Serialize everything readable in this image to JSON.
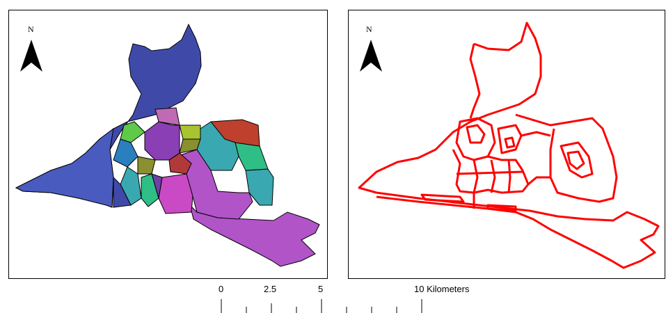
{
  "maps": {
    "left": {
      "north_label": "N",
      "fill_palette": [
        "#3f4aa8",
        "#4a5bc0",
        "#c94ac4",
        "#b054c8",
        "#8a3fb5",
        "#3aa8b0",
        "#2fbf86",
        "#c0402e",
        "#a8c430",
        "#3f8f5a",
        "#8b8f2f",
        "#c06ab5",
        "#2a7fbf",
        "#6f3fa8",
        "#b03a3a",
        "#5ec94a"
      ]
    },
    "right": {
      "north_label": "N",
      "stroke_color": "#ff0000"
    }
  },
  "scale_bar": {
    "labels": [
      "0",
      "2.5",
      "5",
      "10 Kilometers"
    ]
  }
}
